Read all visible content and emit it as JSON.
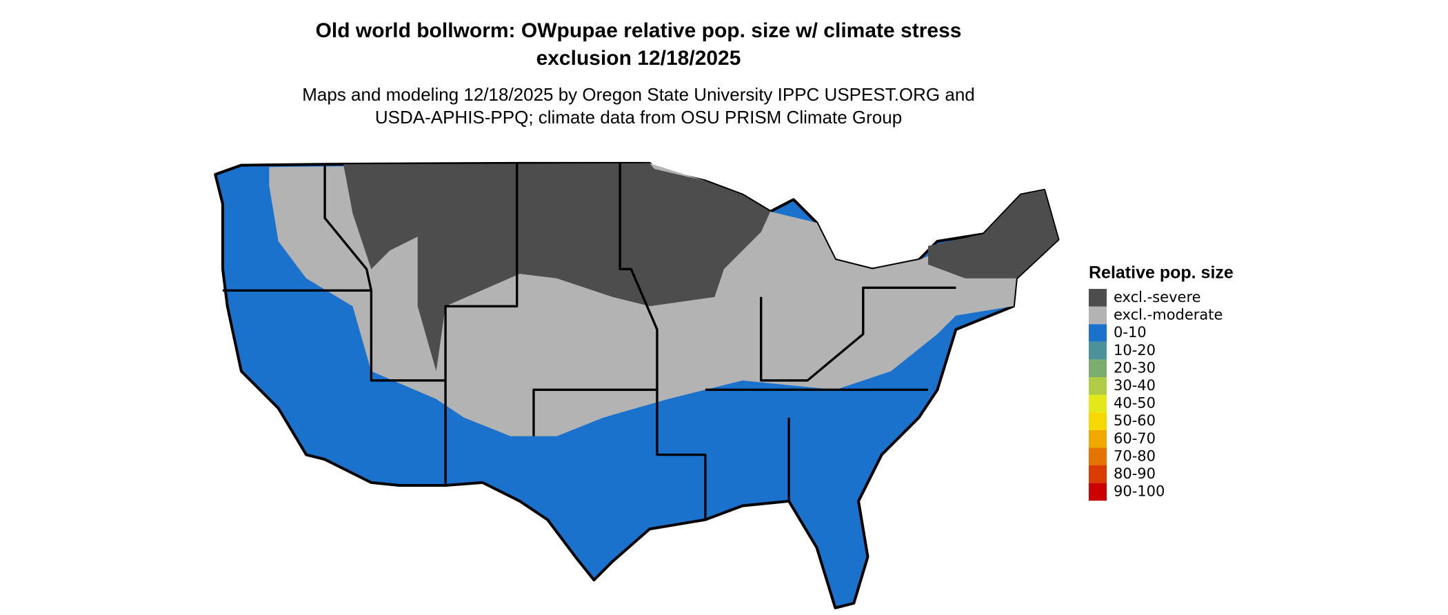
{
  "header": {
    "title": [
      "Old world bollworm: OWpupae relative pop. size w/ climate stress",
      "exclusion 12/18/2025"
    ],
    "subtitle": [
      "Maps and modeling 12/18/2025 by Oregon State University IPPC USPEST.ORG and",
      "USDA-APHIS-PPQ; climate data from OSU PRISM Climate Group"
    ]
  },
  "legend": {
    "title": "Relative pop. size",
    "items": [
      {
        "label": "excl.-severe",
        "color": "#4d4d4d"
      },
      {
        "label": "excl.-moderate",
        "color": "#b3b3b3"
      },
      {
        "label": "0-10",
        "color": "#1a72cc"
      },
      {
        "label": "10-20",
        "color": "#4a9199"
      },
      {
        "label": "20-30",
        "color": "#7aad6e"
      },
      {
        "label": "30-40",
        "color": "#b0cc44"
      },
      {
        "label": "40-50",
        "color": "#e3e81a"
      },
      {
        "label": "50-60",
        "color": "#f5d800"
      },
      {
        "label": "60-70",
        "color": "#f0a800"
      },
      {
        "label": "70-80",
        "color": "#e57300"
      },
      {
        "label": "80-90",
        "color": "#d93b00"
      },
      {
        "label": "90-100",
        "color": "#cc0000"
      }
    ]
  }
}
